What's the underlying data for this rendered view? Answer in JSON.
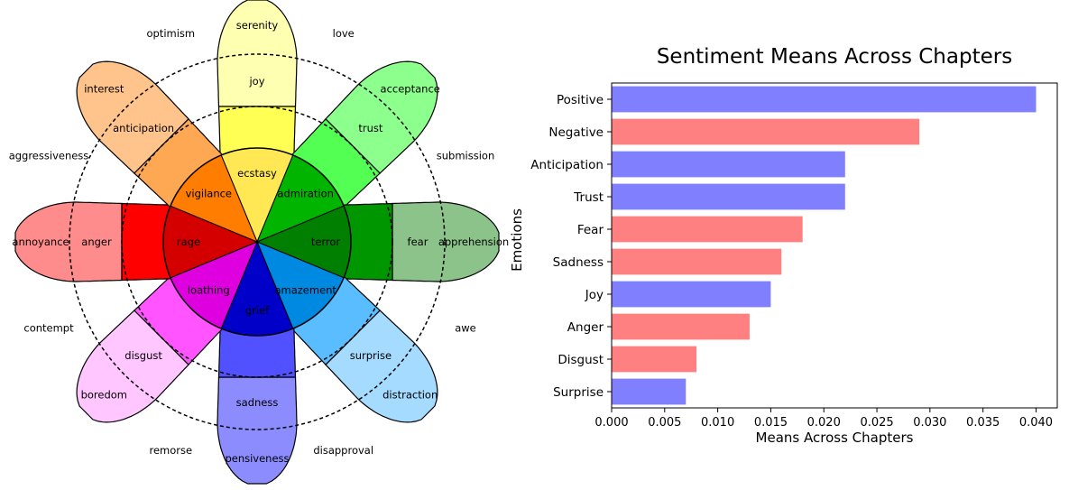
{
  "wheel": {
    "petals": [
      {
        "labels": [
          "serenity",
          "joy",
          "ecstasy"
        ],
        "colors": [
          "#ffffb1",
          "#ffff54",
          "#ffe854"
        ]
      },
      {
        "labels": [
          "acceptance",
          "trust",
          "admiration"
        ],
        "colors": [
          "#8cff8c",
          "#54ff54",
          "#00b400"
        ]
      },
      {
        "labels": [
          "apprehension",
          "fear",
          "terror"
        ],
        "colors": [
          "#8bc38b",
          "#009600",
          "#007f00"
        ]
      },
      {
        "labels": [
          "distraction",
          "surprise",
          "amazement"
        ],
        "colors": [
          "#a5dbff",
          "#59bdff",
          "#0089e0"
        ]
      },
      {
        "labels": [
          "pensiveness",
          "sadness",
          "grief"
        ],
        "colors": [
          "#8c8cff",
          "#5151ff",
          "#0000c8"
        ]
      },
      {
        "labels": [
          "boredom",
          "disgust",
          "loathing"
        ],
        "colors": [
          "#ffc6ff",
          "#ff54ff",
          "#de00de"
        ]
      },
      {
        "labels": [
          "annoyance",
          "anger",
          "rage"
        ],
        "colors": [
          "#ff8c8c",
          "#ff0000",
          "#d40000"
        ]
      },
      {
        "labels": [
          "interest",
          "anticipation",
          "vigilance"
        ],
        "colors": [
          "#ffc48c",
          "#ffa854",
          "#ff7d00"
        ]
      }
    ],
    "dyads": [
      {
        "label": "love"
      },
      {
        "label": "submission"
      },
      {
        "label": "awe"
      },
      {
        "label": "disapproval"
      },
      {
        "label": "remorse"
      },
      {
        "label": "contempt"
      },
      {
        "label": "aggressiveness"
      },
      {
        "label": "optimism"
      }
    ]
  },
  "chart_data": {
    "type": "bar",
    "orientation": "horizontal",
    "title": "Sentiment Means Across Chapters",
    "xlabel": "Means Across Chapters",
    "ylabel": "Emotions",
    "categories": [
      "Positive",
      "Negative",
      "Anticipation",
      "Trust",
      "Fear",
      "Sadness",
      "Joy",
      "Anger",
      "Disgust",
      "Surprise"
    ],
    "values": [
      0.04,
      0.029,
      0.022,
      0.022,
      0.018,
      0.016,
      0.015,
      0.013,
      0.008,
      0.007
    ],
    "bar_colors": [
      "#8080ff",
      "#ff8080",
      "#8080ff",
      "#8080ff",
      "#ff8080",
      "#ff8080",
      "#8080ff",
      "#ff8080",
      "#ff8080",
      "#8080ff"
    ],
    "xlim": [
      0,
      0.042
    ],
    "xticks": [
      "0.000",
      "0.005",
      "0.010",
      "0.015",
      "0.020",
      "0.025",
      "0.030",
      "0.035",
      "0.040"
    ],
    "grid": false
  }
}
